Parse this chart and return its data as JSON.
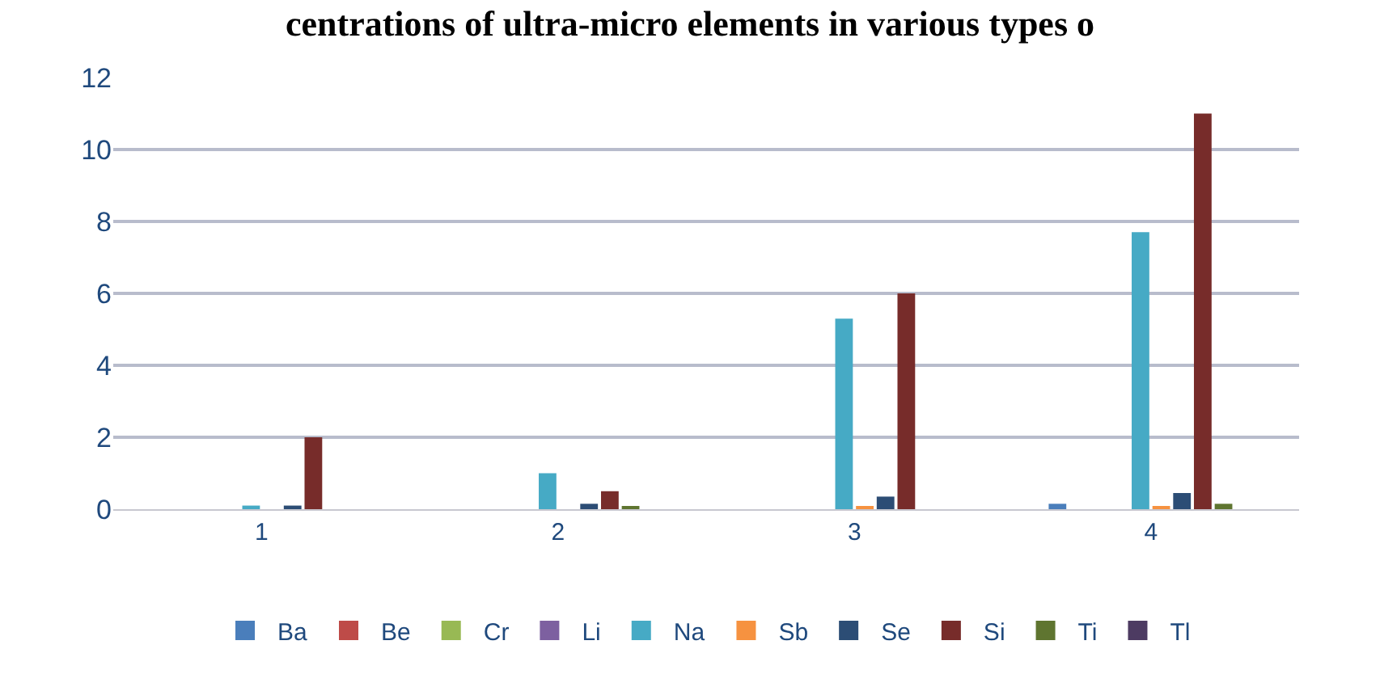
{
  "chart_data": {
    "type": "bar",
    "title": "centrations of ultra-micro elements in various types o",
    "categories": [
      "1",
      "2",
      "3",
      "4"
    ],
    "series": [
      {
        "name": "Ba",
        "color": "#4a7ebb",
        "values": [
          0,
          0,
          0,
          0.15
        ]
      },
      {
        "name": "Be",
        "color": "#be4b48",
        "values": [
          0,
          0,
          0,
          0
        ]
      },
      {
        "name": "Cr",
        "color": "#98b954",
        "values": [
          0,
          0,
          0,
          0
        ]
      },
      {
        "name": "Li",
        "color": "#7d60a0",
        "values": [
          0,
          0,
          0,
          0
        ]
      },
      {
        "name": "Na",
        "color": "#46aac5",
        "values": [
          0.1,
          1.0,
          5.3,
          7.7
        ]
      },
      {
        "name": "Sb",
        "color": "#f69240",
        "values": [
          0,
          0,
          0.05,
          0.05
        ]
      },
      {
        "name": "Se",
        "color": "#2c4d75",
        "values": [
          0.1,
          0.15,
          0.35,
          0.45
        ]
      },
      {
        "name": "Si",
        "color": "#772c2a",
        "values": [
          2.0,
          0.5,
          6.0,
          11.0
        ]
      },
      {
        "name": "Ti",
        "color": "#5f7530",
        "values": [
          0,
          0.05,
          0,
          0.15
        ]
      },
      {
        "name": "Tl",
        "color": "#4d3b62",
        "values": [
          0,
          0,
          0,
          0
        ]
      }
    ],
    "ylim": [
      0,
      12
    ],
    "yticks": [
      0,
      2,
      4,
      6,
      8,
      10,
      12
    ],
    "grid": true,
    "legend": "bottom"
  }
}
